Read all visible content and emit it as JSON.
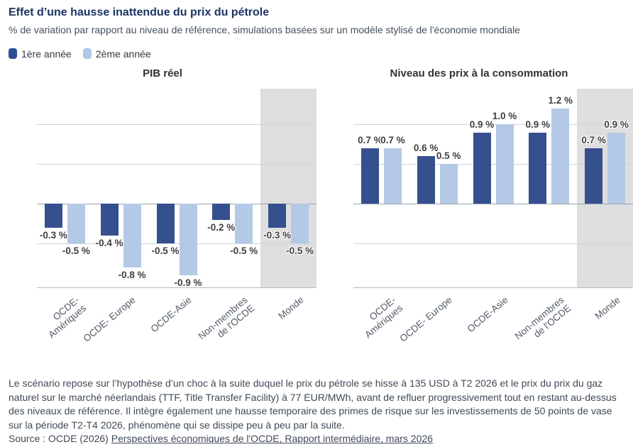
{
  "header": {
    "title": "Effet d’une hausse inattendue du prix du pétrole",
    "subtitle": "% de variation par rapport au niveau de référence, simulations basées sur un modèle stylisé de l'économie mondiale"
  },
  "legend": {
    "items": [
      {
        "label": "1ère année",
        "color": "#2d4c92"
      },
      {
        "label": "2ème année",
        "color": "#b0c8e6"
      }
    ]
  },
  "colors": {
    "series1": "#35508e",
    "series2": "#b3c9e6",
    "highlight_band": "#dedede",
    "gridline": "#ccd5df",
    "zero_line": "#9aa3af",
    "axis_line": "#b4bac2",
    "accent_title": "#1c3461"
  },
  "chart_data": [
    {
      "type": "bar",
      "title": "PIB réel",
      "categories": [
        "OCDE-\nAmériques",
        "OCDE- Europe",
        "OCDE-Asie",
        "Non-membres\nde l'OCDE",
        "Monde"
      ],
      "series": [
        {
          "name": "1ère année",
          "values": [
            -0.3,
            -0.4,
            -0.5,
            -0.2,
            -0.3
          ]
        },
        {
          "name": "2ème année",
          "values": [
            -0.5,
            -0.8,
            -0.9,
            -0.5,
            -0.5
          ]
        }
      ],
      "unit": "%",
      "ylabel": "",
      "xlabel": "",
      "ylim": [
        -1.05,
        1.45
      ],
      "gridlines": [
        1.0,
        0.5,
        0,
        -0.5
      ],
      "grid": true,
      "legend_position": "top-left-of-figure",
      "value_labels": true,
      "highlight_last_category": true
    },
    {
      "type": "bar",
      "title": "Niveau des prix à la consommation",
      "categories": [
        "OCDE-\nAmériques",
        "OCDE- Europe",
        "OCDE-Asie",
        "Non-membres\nde l'OCDE",
        "Monde"
      ],
      "series": [
        {
          "name": "1ère année",
          "values": [
            0.7,
            0.6,
            0.9,
            0.9,
            0.7
          ]
        },
        {
          "name": "2ème année",
          "values": [
            0.7,
            0.5,
            1.0,
            1.2,
            0.9
          ]
        }
      ],
      "unit": "%",
      "ylabel": "",
      "xlabel": "",
      "ylim": [
        -1.05,
        1.45
      ],
      "gridlines": [
        1.0,
        0.5,
        0,
        -0.5
      ],
      "grid": true,
      "legend_position": "top-left-of-figure",
      "value_labels": true,
      "highlight_last_category": true
    }
  ],
  "footnote": {
    "text": "Le scénario repose sur l’hypothèse d’un choc à la suite duquel le prix du pétrole se hisse à 135 USD à T2 2026 et le prix du prix du gaz naturel sur le marché néerlandais (TTF, Title Transfer Facility) à 77 EUR/MWh, avant de refluer progressivement tout en restant au-dessus des niveaux de référence. Il intègre également une hausse temporaire des primes de risque sur les investissements de 50 points de vase sur la période T2-T4 2026, phénomène qui se dissipe peu à peu par la suite."
  },
  "source": {
    "prefix": "Source : OCDE (2026) ",
    "link": "Perspectives économiques de l'OCDE, Rapport intermédiaire, mars 2026"
  }
}
